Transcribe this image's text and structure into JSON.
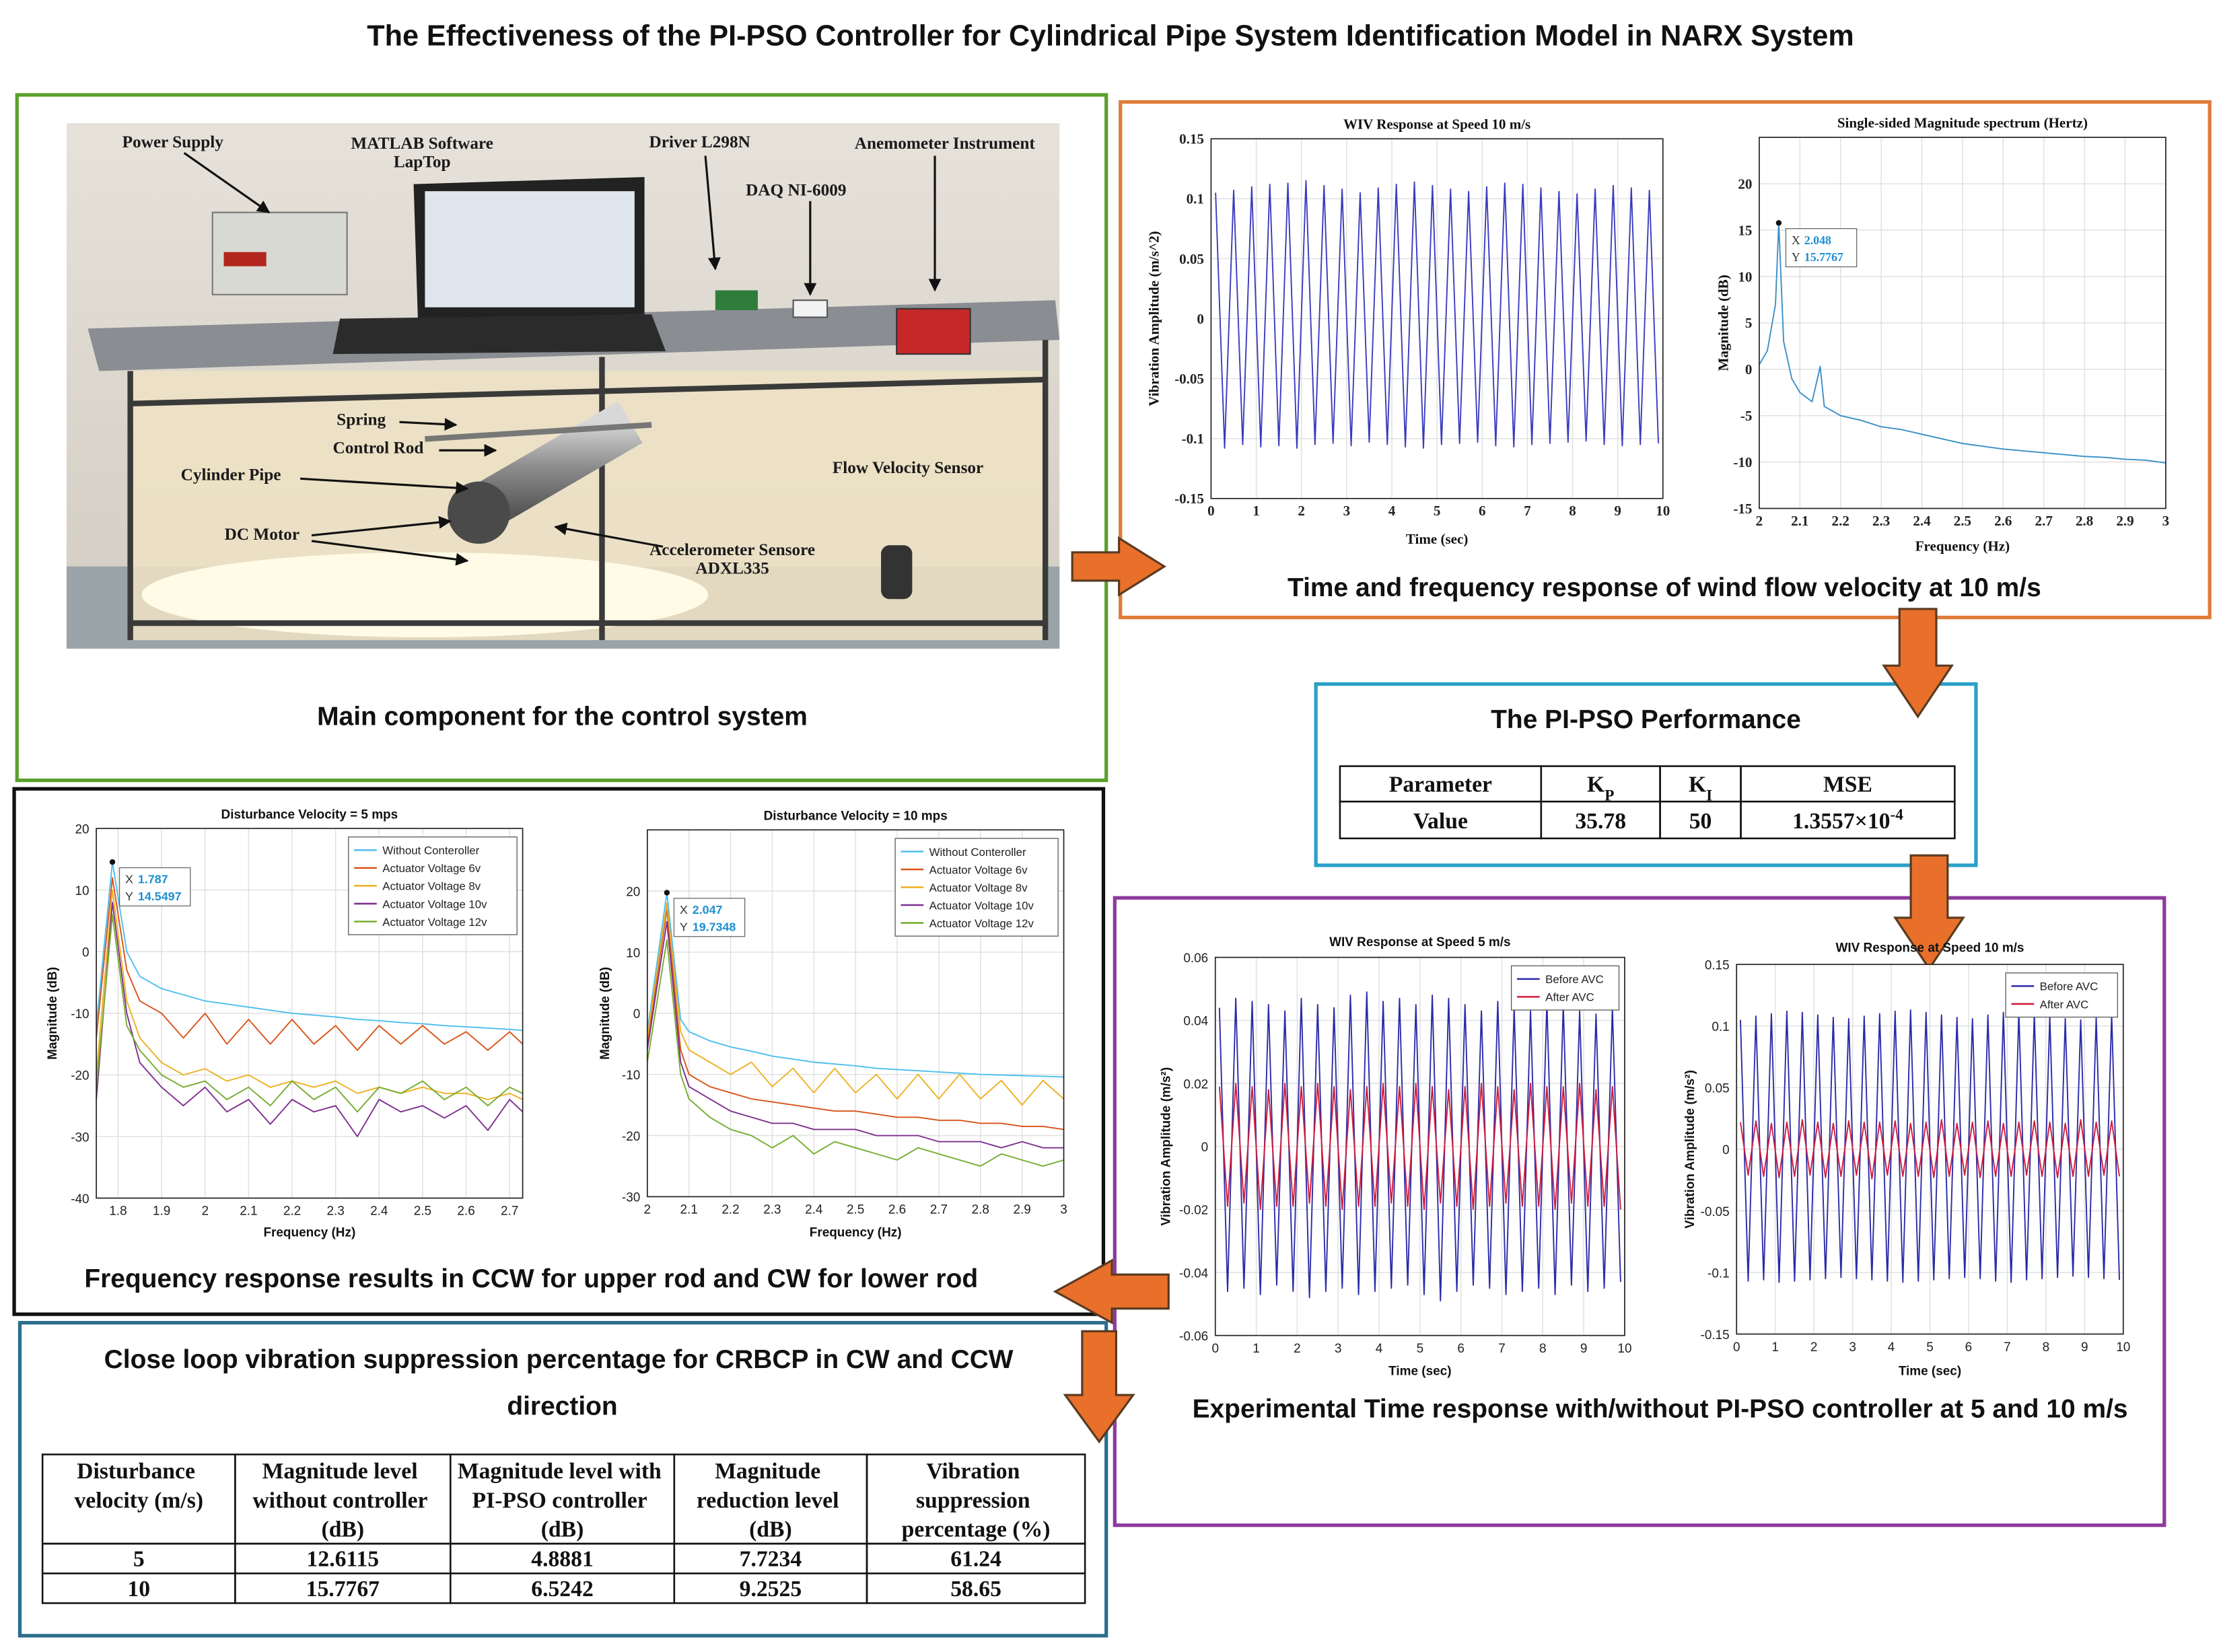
{
  "title": "The Effectiveness of the PI-PSO Controller for Cylindrical Pipe System Identification Model in NARX System",
  "photo": {
    "caption": "Main component for the control system",
    "labels": [
      "Power Supply",
      "MATLAB Software",
      "LapTop",
      "Driver L298N",
      "Anemometer Instrument",
      "DAQ NI-6009",
      "Spring",
      "Control Rod",
      "Cylinder Pipe",
      "Flow Velocity Sensor",
      "DC Motor",
      "Accelerometer Sensore",
      "ADXL335"
    ]
  },
  "captions": {
    "time_frequency": "Time and frequency response of wind flow velocity at 10 m/s",
    "frequency_response": "Frequency response results in CCW for upper rod and CW for lower rod",
    "experimental": "Experimental Time response with/without PI-PSO controller at 5 and 10 m/s"
  },
  "performance": {
    "title": "The PI-PSO Performance",
    "header": [
      "Parameter",
      {
        "base": "K",
        "sub": "P"
      },
      {
        "base": "K",
        "sub": "I"
      },
      "MSE"
    ],
    "rows": [
      [
        "Value",
        35.78,
        50,
        {
          "base": "1.3557×10",
          "sup": "-4"
        }
      ]
    ]
  },
  "suppression": {
    "title": "Close loop vibration suppression percentage for CRBCP in CW and CCW direction",
    "header": [
      "Disturbance velocity (m/s)",
      "Magnitude level without controller (dB)",
      "Magnitude level with PI-PSO controller (dB)",
      "Magnitude reduction level (dB)",
      "Vibration suppression percentage (%)"
    ],
    "rows": [
      [
        5,
        12.6115,
        4.8881,
        7.7234,
        61.24
      ],
      [
        10,
        15.7767,
        6.5242,
        9.2525,
        58.65
      ]
    ]
  },
  "chart_data": [
    {
      "type": "line",
      "title": "WIV Response at Speed 10 m/s",
      "xlabel": "Time (sec)",
      "ylabel": "Vibration Amplitude (m/s^2)",
      "xlim": [
        0,
        10
      ],
      "ylim": [
        -0.15,
        0.15
      ],
      "xticks": [
        0,
        1,
        2,
        3,
        4,
        5,
        6,
        7,
        8,
        9,
        10
      ],
      "yticks": [
        -0.15,
        -0.1,
        -0.05,
        0,
        0.05,
        0.1,
        0.15
      ],
      "grid": true,
      "x": [
        0.1,
        0.3,
        0.5,
        0.7,
        0.9,
        1.1,
        1.3,
        1.5,
        1.7,
        1.9,
        2.1,
        2.3,
        2.5,
        2.7,
        2.9,
        3.1,
        3.3,
        3.5,
        3.7,
        3.9,
        4.1,
        4.3,
        4.5,
        4.7,
        4.9,
        5.1,
        5.3,
        5.5,
        5.7,
        5.9,
        6.1,
        6.3,
        6.5,
        6.7,
        6.9,
        7.1,
        7.3,
        7.5,
        7.7,
        7.9,
        8.1,
        8.3,
        8.5,
        8.7,
        8.9,
        9.1,
        9.3,
        9.5,
        9.7,
        9.9
      ],
      "series": [
        {
          "color": "#3b3bbd",
          "values": [
            0.105,
            -0.108,
            0.107,
            -0.105,
            0.11,
            -0.107,
            0.112,
            -0.106,
            0.113,
            -0.108,
            0.115,
            -0.105,
            0.111,
            -0.104,
            0.108,
            -0.106,
            0.105,
            -0.103,
            0.109,
            -0.105,
            0.112,
            -0.107,
            0.114,
            -0.108,
            0.111,
            -0.105,
            0.108,
            -0.104,
            0.106,
            -0.103,
            0.11,
            -0.106,
            0.113,
            -0.107,
            0.112,
            -0.105,
            0.109,
            -0.104,
            0.106,
            -0.103,
            0.104,
            -0.102,
            0.108,
            -0.105,
            0.111,
            -0.106,
            0.109,
            -0.105,
            0.107,
            -0.104
          ]
        }
      ]
    },
    {
      "type": "line",
      "title": "Single-sided Magnitude spectrum (Hertz)",
      "xlabel": "Frequency (Hz)",
      "ylabel": "Magnitude (dB)",
      "xlim": [
        2,
        3
      ],
      "ylim": [
        -15,
        25
      ],
      "xticks": [
        2,
        2.1,
        2.2,
        2.3,
        2.4,
        2.5,
        2.6,
        2.7,
        2.8,
        2.9,
        3
      ],
      "yticks": [
        -15,
        -10,
        -5,
        0,
        5,
        10,
        15,
        20
      ],
      "grid": true,
      "x": [
        2,
        2.02,
        2.04,
        2.048,
        2.06,
        2.08,
        2.1,
        2.13,
        2.15,
        2.16,
        2.2,
        2.25,
        2.3,
        2.35,
        2.4,
        2.45,
        2.5,
        2.55,
        2.6,
        2.65,
        2.7,
        2.75,
        2.8,
        2.85,
        2.9,
        2.95,
        3
      ],
      "series": [
        {
          "color": "#3a8fc8",
          "values": [
            0.5,
            2,
            7,
            15.7767,
            3,
            -1,
            -2.5,
            -3.5,
            0.3,
            -4,
            -5,
            -5.5,
            -6.2,
            -6.5,
            -7,
            -7.5,
            -8,
            -8.3,
            -8.6,
            -8.8,
            -9,
            -9.2,
            -9.4,
            -9.5,
            -9.7,
            -9.8,
            -10.1
          ]
        }
      ],
      "datatip": {
        "labels": [
          "X",
          "Y"
        ],
        "x": 2.048,
        "y": 15.7767
      }
    },
    {
      "type": "line",
      "title": "Disturbance Velocity = 5 mps",
      "xlabel": "Frequency (Hz)",
      "ylabel": "Magnitude (dB)",
      "xlim": [
        1.75,
        2.73
      ],
      "ylim": [
        -40,
        20
      ],
      "xticks": [
        1.8,
        1.9,
        2,
        2.1,
        2.2,
        2.3,
        2.4,
        2.5,
        2.6,
        2.7
      ],
      "yticks": [
        -40,
        -30,
        -20,
        -10,
        0,
        10,
        20
      ],
      "grid": true,
      "legend": "upper right",
      "x": [
        1.75,
        1.787,
        1.82,
        1.85,
        1.9,
        1.95,
        2.0,
        2.05,
        2.1,
        2.15,
        2.2,
        2.25,
        2.3,
        2.35,
        2.4,
        2.45,
        2.5,
        2.55,
        2.6,
        2.65,
        2.7,
        2.73
      ],
      "series": [
        {
          "name": "Without Conteroller",
          "color": "#4dbeee",
          "values": [
            -12,
            14.5497,
            0,
            -4,
            -6,
            -7,
            -8,
            -8.5,
            -9,
            -9.5,
            -10,
            -10.3,
            -10.6,
            -11,
            -11.2,
            -11.5,
            -11.7,
            -12,
            -12.2,
            -12.4,
            -12.6,
            -12.8
          ]
        },
        {
          "name": "Actuator Voltage 6v",
          "color": "#d95319",
          "values": [
            -14,
            12,
            -3,
            -8,
            -10,
            -14,
            -10,
            -15,
            -11,
            -15,
            -11,
            -15,
            -12,
            -16,
            -12,
            -15,
            -12,
            -15,
            -13,
            -16,
            -13,
            -15
          ]
        },
        {
          "name": "Actuator Voltage 8v",
          "color": "#edb120",
          "values": [
            -20,
            10,
            -8,
            -14,
            -18,
            -20,
            -19,
            -21,
            -20,
            -22,
            -21,
            -22,
            -21,
            -23,
            -22,
            -23,
            -22,
            -23,
            -23,
            -24,
            -23,
            -24
          ]
        },
        {
          "name": "Actuator Voltage 10v",
          "color": "#7e2f8e",
          "values": [
            -24,
            8,
            -10,
            -18,
            -22,
            -25,
            -22,
            -26,
            -24,
            -28,
            -24,
            -26,
            -25,
            -30,
            -24,
            -26,
            -25,
            -27,
            -25,
            -29,
            -24,
            -26
          ]
        },
        {
          "name": "Actuator Voltage 12v",
          "color": "#77ac30",
          "values": [
            -22,
            6,
            -12,
            -16,
            -20,
            -22,
            -21,
            -24,
            -22,
            -25,
            -21,
            -24,
            -22,
            -26,
            -22,
            -23,
            -21,
            -24,
            -22,
            -25,
            -22,
            -23
          ]
        }
      ],
      "datatip": {
        "labels": [
          "X",
          "Y"
        ],
        "x": 1.787,
        "y": 14.5497
      }
    },
    {
      "type": "line",
      "title": "Disturbance Velocity = 10 mps",
      "xlabel": "Frequency (Hz)",
      "ylabel": "Magnitude (dB)",
      "xlim": [
        2,
        3
      ],
      "ylim": [
        -30,
        30
      ],
      "xticks": [
        2,
        2.1,
        2.2,
        2.3,
        2.4,
        2.5,
        2.6,
        2.7,
        2.8,
        2.9,
        3
      ],
      "yticks": [
        -30,
        -20,
        -10,
        0,
        10,
        20
      ],
      "grid": true,
      "legend": "upper right",
      "x": [
        2,
        2.047,
        2.08,
        2.1,
        2.15,
        2.2,
        2.25,
        2.3,
        2.35,
        2.4,
        2.45,
        2.5,
        2.55,
        2.6,
        2.65,
        2.7,
        2.75,
        2.8,
        2.85,
        2.9,
        2.95,
        3
      ],
      "series": [
        {
          "name": "Without Conteroller",
          "color": "#4dbeee",
          "values": [
            -3,
            19.7348,
            -1,
            -3,
            -4.5,
            -5.5,
            -6.2,
            -7,
            -7.5,
            -8,
            -8.3,
            -8.6,
            -9,
            -9.2,
            -9.4,
            -9.6,
            -9.8,
            -10,
            -10.1,
            -10.2,
            -10.3,
            -10.4
          ]
        },
        {
          "name": "Actuator Voltage 6v",
          "color": "#d95319",
          "values": [
            -5,
            17,
            -6,
            -10,
            -12,
            -13,
            -14,
            -14.5,
            -15,
            -15.5,
            -16,
            -16,
            -16.5,
            -17,
            -17,
            -17.5,
            -17.5,
            -18,
            -18,
            -18.5,
            -18.5,
            -19
          ]
        },
        {
          "name": "Actuator Voltage 8v",
          "color": "#edb120",
          "values": [
            -4,
            18,
            -3,
            -6,
            -8,
            -10,
            -8,
            -12,
            -9,
            -13,
            -9,
            -13,
            -10,
            -14,
            -10,
            -14,
            -10,
            -14,
            -11,
            -15,
            -11,
            -14
          ]
        },
        {
          "name": "Actuator Voltage 10v",
          "color": "#7e2f8e",
          "values": [
            -6,
            15,
            -8,
            -12,
            -14,
            -16,
            -17,
            -18,
            -18,
            -19,
            -19,
            -19,
            -20,
            -20,
            -20,
            -21,
            -21,
            -21,
            -22,
            -21,
            -22,
            -22
          ]
        },
        {
          "name": "Actuator Voltage 12v",
          "color": "#77ac30",
          "values": [
            -8,
            12,
            -10,
            -14,
            -17,
            -19,
            -20,
            -22,
            -20,
            -23,
            -21,
            -22,
            -23,
            -24,
            -22,
            -23,
            -24,
            -25,
            -23,
            -24,
            -25,
            -24
          ]
        }
      ],
      "datatip": {
        "labels": [
          "X",
          "Y"
        ],
        "x": 2.047,
        "y": 19.7348
      }
    },
    {
      "type": "line",
      "title": "WIV Response at Speed 5 m/s",
      "xlabel": "Time (sec)",
      "ylabel": "Vibration Amplitude (m/s²)",
      "xlim": [
        0,
        10
      ],
      "ylim": [
        -0.06,
        0.06
      ],
      "xticks": [
        0,
        1,
        2,
        3,
        4,
        5,
        6,
        7,
        8,
        9,
        10
      ],
      "yticks": [
        -0.06,
        -0.04,
        -0.02,
        0,
        0.02,
        0.04,
        0.06
      ],
      "grid": true,
      "legend": "upper right",
      "x": [
        0.1,
        0.3,
        0.5,
        0.7,
        0.9,
        1.1,
        1.3,
        1.5,
        1.7,
        1.9,
        2.1,
        2.3,
        2.5,
        2.7,
        2.9,
        3.1,
        3.3,
        3.5,
        3.7,
        3.9,
        4.1,
        4.3,
        4.5,
        4.7,
        4.9,
        5.1,
        5.3,
        5.5,
        5.7,
        5.9,
        6.1,
        6.3,
        6.5,
        6.7,
        6.9,
        7.1,
        7.3,
        7.5,
        7.7,
        7.9,
        8.1,
        8.3,
        8.5,
        8.7,
        8.9,
        9.1,
        9.3,
        9.5,
        9.7,
        9.9
      ],
      "series": [
        {
          "name": "Before AVC",
          "color": "#2b2ba8",
          "values": [
            0.044,
            -0.046,
            0.047,
            -0.045,
            0.046,
            -0.047,
            0.045,
            -0.044,
            0.043,
            -0.046,
            0.047,
            -0.048,
            0.045,
            -0.046,
            0.044,
            -0.045,
            0.048,
            -0.047,
            0.049,
            -0.046,
            0.046,
            -0.045,
            0.047,
            -0.044,
            0.045,
            -0.047,
            0.048,
            -0.049,
            0.047,
            -0.046,
            0.045,
            -0.044,
            0.043,
            -0.045,
            0.046,
            -0.047,
            0.044,
            -0.046,
            0.043,
            -0.045,
            0.046,
            -0.047,
            0.045,
            -0.044,
            0.043,
            -0.046,
            0.042,
            -0.045,
            0.044,
            -0.043
          ]
        },
        {
          "name": "After AVC",
          "color": "#d01c3c",
          "values": [
            0.019,
            -0.019,
            0.02,
            -0.018,
            0.019,
            -0.02,
            0.018,
            -0.019,
            0.02,
            -0.019,
            0.019,
            -0.018,
            0.02,
            -0.019,
            0.019,
            -0.02,
            0.018,
            -0.019,
            0.019,
            -0.019,
            0.02,
            -0.018,
            0.019,
            -0.019,
            0.02,
            -0.02,
            0.019,
            -0.018,
            0.018,
            -0.019,
            0.019,
            -0.02,
            0.02,
            -0.019,
            0.019,
            -0.018,
            0.018,
            -0.019,
            0.02,
            -0.019,
            0.019,
            -0.02,
            0.019,
            -0.018,
            0.02,
            -0.019,
            0.018,
            -0.019,
            0.019,
            -0.02
          ]
        }
      ]
    },
    {
      "type": "line",
      "title": "WIV Response at Speed 10 m/s",
      "xlabel": "Time (sec)",
      "ylabel": "Vibration Amplitude (m/s²)",
      "xlim": [
        0,
        10
      ],
      "ylim": [
        -0.15,
        0.15
      ],
      "xticks": [
        0,
        1,
        2,
        3,
        4,
        5,
        6,
        7,
        8,
        9,
        10
      ],
      "yticks": [
        -0.15,
        -0.1,
        -0.05,
        0,
        0.05,
        0.1,
        0.15
      ],
      "grid": true,
      "legend": "upper right",
      "x": [
        0.1,
        0.3,
        0.5,
        0.7,
        0.9,
        1.1,
        1.3,
        1.5,
        1.7,
        1.9,
        2.1,
        2.3,
        2.5,
        2.7,
        2.9,
        3.1,
        3.3,
        3.5,
        3.7,
        3.9,
        4.1,
        4.3,
        4.5,
        4.7,
        4.9,
        5.1,
        5.3,
        5.5,
        5.7,
        5.9,
        6.1,
        6.3,
        6.5,
        6.7,
        6.9,
        7.1,
        7.3,
        7.5,
        7.7,
        7.9,
        8.1,
        8.3,
        8.5,
        8.7,
        8.9,
        9.1,
        9.3,
        9.5,
        9.7,
        9.9
      ],
      "series": [
        {
          "name": "Before AVC",
          "color": "#2b2ba8",
          "values": [
            0.105,
            -0.107,
            0.108,
            -0.106,
            0.11,
            -0.108,
            0.112,
            -0.107,
            0.111,
            -0.106,
            0.109,
            -0.105,
            0.107,
            -0.104,
            0.106,
            -0.105,
            0.108,
            -0.106,
            0.11,
            -0.107,
            0.112,
            -0.108,
            0.113,
            -0.107,
            0.111,
            -0.106,
            0.109,
            -0.105,
            0.107,
            -0.104,
            0.106,
            -0.105,
            0.109,
            -0.107,
            0.111,
            -0.108,
            0.112,
            -0.106,
            0.11,
            -0.105,
            0.108,
            -0.104,
            0.106,
            -0.103,
            0.105,
            -0.104,
            0.107,
            -0.105,
            0.109,
            -0.106
          ]
        },
        {
          "name": "After AVC",
          "color": "#d01c3c",
          "values": [
            0.022,
            -0.021,
            0.023,
            -0.022,
            0.021,
            -0.023,
            0.022,
            -0.022,
            0.024,
            -0.021,
            0.022,
            -0.023,
            0.021,
            -0.022,
            0.023,
            -0.021,
            0.022,
            -0.024,
            0.022,
            -0.021,
            0.023,
            -0.022,
            0.021,
            -0.022,
            0.022,
            -0.023,
            0.024,
            -0.022,
            0.021,
            -0.021,
            0.022,
            -0.023,
            0.023,
            -0.022,
            0.021,
            -0.022,
            0.022,
            -0.021,
            0.023,
            -0.022,
            0.022,
            -0.023,
            0.021,
            -0.022,
            0.024,
            -0.022,
            0.022,
            -0.021,
            0.023,
            -0.022
          ]
        }
      ]
    }
  ]
}
